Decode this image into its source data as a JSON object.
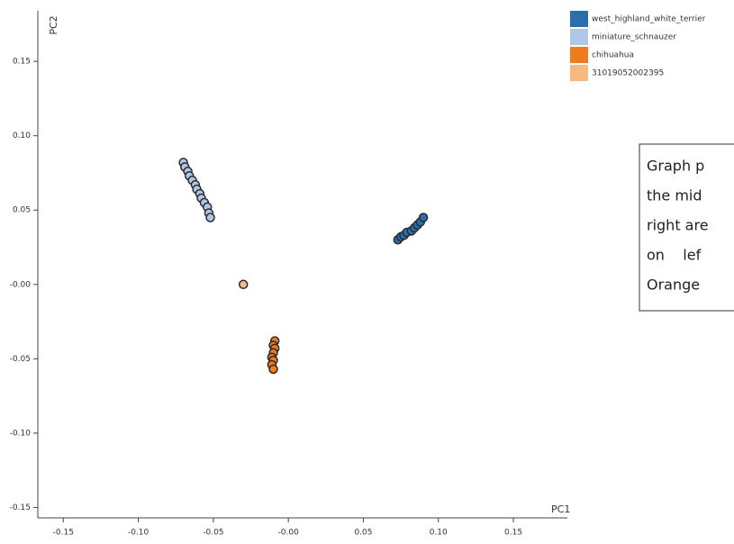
{
  "chart_data": {
    "type": "scatter",
    "xlabel": "PC1",
    "ylabel": "PC2",
    "xlim": [
      -0.167,
      0.186
    ],
    "ylim": [
      -0.157,
      0.184
    ],
    "xticks": [
      -0.15,
      {
        "value": -0.1,
        "label": "-0.10"
      },
      -0.05,
      {
        "value": 0,
        "label": "-0.00"
      },
      0.05,
      {
        "value": 0.1,
        "label": "0.10"
      },
      0.15
    ],
    "yticks": [
      0.15,
      {
        "value": 0.1,
        "label": "0.10"
      },
      0.05,
      {
        "value": 0,
        "label": "-0.00"
      },
      -0.05,
      {
        "value": -0.1,
        "label": "-0.10"
      },
      -0.15
    ],
    "series": [
      {
        "name": "west_highland_white_terrier",
        "color": "#2a6fad",
        "x": [
          0.073,
          0.075,
          0.077,
          0.079,
          0.082,
          0.084,
          0.086,
          0.088,
          0.09
        ],
        "values": [
          0.03,
          0.032,
          0.033,
          0.035,
          0.036,
          0.038,
          0.04,
          0.042,
          0.045
        ]
      },
      {
        "name": "miniature_schnauzer",
        "color": "#aec7e8",
        "x": [
          -0.07,
          -0.069,
          -0.067,
          -0.066,
          -0.064,
          -0.062,
          -0.061,
          -0.059,
          -0.058,
          -0.056,
          -0.054,
          -0.053,
          -0.052
        ],
        "values": [
          0.082,
          0.079,
          0.076,
          0.073,
          0.07,
          0.067,
          0.064,
          0.061,
          0.058,
          0.055,
          0.052,
          0.048,
          0.045
        ]
      },
      {
        "name": "chihuahua",
        "color": "#f07b1a",
        "x": [
          -0.009,
          -0.01,
          -0.009,
          -0.01,
          -0.011,
          -0.01,
          -0.011,
          -0.01
        ],
        "values": [
          -0.038,
          -0.041,
          -0.043,
          -0.046,
          -0.049,
          -0.051,
          -0.054,
          -0.057
        ]
      },
      {
        "name": "31019052002395",
        "color": "#f7b97d",
        "x": [
          -0.03
        ],
        "values": [
          0.0
        ]
      }
    ],
    "annotation": [
      "Graph p",
      "the mid",
      "right are",
      "on    lef",
      "Orange"
    ]
  }
}
